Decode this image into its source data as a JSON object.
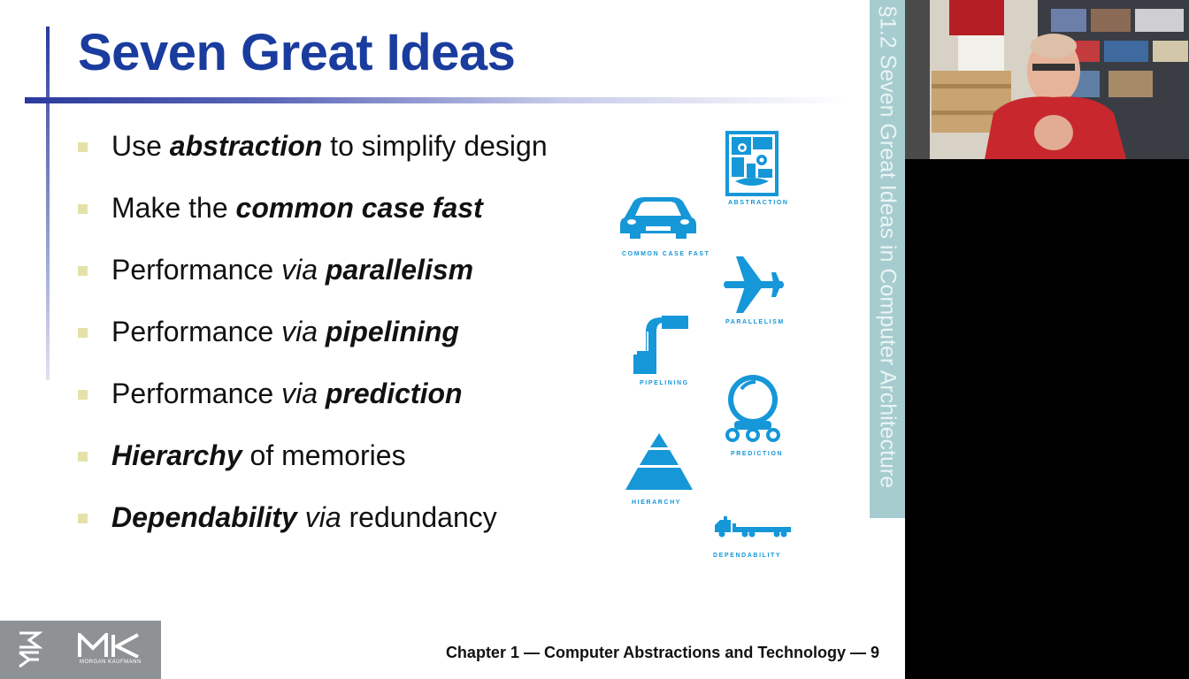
{
  "slide": {
    "title": "Seven Great Ideas",
    "bullets": [
      {
        "parts": [
          {
            "t": "Use ",
            "s": "n"
          },
          {
            "t": "abstraction",
            "s": "bi"
          },
          {
            "t": " to simplify design",
            "s": "n"
          }
        ]
      },
      {
        "parts": [
          {
            "t": "Make the ",
            "s": "n"
          },
          {
            "t": "common case fast",
            "s": "bi"
          }
        ]
      },
      {
        "parts": [
          {
            "t": "Performance ",
            "s": "n"
          },
          {
            "t": "via",
            "s": "i"
          },
          {
            "t": " ",
            "s": "n"
          },
          {
            "t": "parallelism",
            "s": "bi"
          }
        ]
      },
      {
        "parts": [
          {
            "t": "Performance ",
            "s": "n"
          },
          {
            "t": "via",
            "s": "i"
          },
          {
            "t": " ",
            "s": "n"
          },
          {
            "t": "pipelining",
            "s": "bi"
          }
        ]
      },
      {
        "parts": [
          {
            "t": "Performance ",
            "s": "n"
          },
          {
            "t": "via",
            "s": "i"
          },
          {
            "t": " ",
            "s": "n"
          },
          {
            "t": "prediction",
            "s": "bi"
          }
        ]
      },
      {
        "parts": [
          {
            "t": "Hierarchy",
            "s": "bi"
          },
          {
            "t": " of memories",
            "s": "n"
          }
        ]
      },
      {
        "parts": [
          {
            "t": "Dependability",
            "s": "bi"
          },
          {
            "t": " ",
            "s": "n"
          },
          {
            "t": "via",
            "s": "i"
          },
          {
            "t": " redundancy",
            "s": "n"
          }
        ]
      }
    ],
    "side_label": "§1.2 Seven Great Ideas in Computer Architecture",
    "icons": {
      "abstraction": {
        "label": "ABSTRACTION",
        "icon": "abstract-face-icon"
      },
      "common_case_fast": {
        "label": "COMMON CASE FAST",
        "icon": "car-icon"
      },
      "parallelism": {
        "label": "PARALLELISM",
        "icon": "airplane-icon"
      },
      "pipelining": {
        "label": "PIPELINING",
        "icon": "pipe-icon"
      },
      "prediction": {
        "label": "PREDICTION",
        "icon": "crystal-ball-icon"
      },
      "hierarchy": {
        "label": "HIERARCHY",
        "icon": "pyramid-icon"
      },
      "dependability": {
        "label": "DEPENDABILITY",
        "icon": "truck-icon"
      }
    },
    "footer": {
      "logo_text": "MK",
      "logo_subtext": "MORGAN KAUFMANN",
      "caption": "Chapter 1 — Computer Abstractions and Technology — 9"
    }
  },
  "colors": {
    "title": "#1a3c9e",
    "icon": "#1597d8",
    "sidebar": "#a7cccf",
    "bullet_marker": "#e4e2a8"
  }
}
